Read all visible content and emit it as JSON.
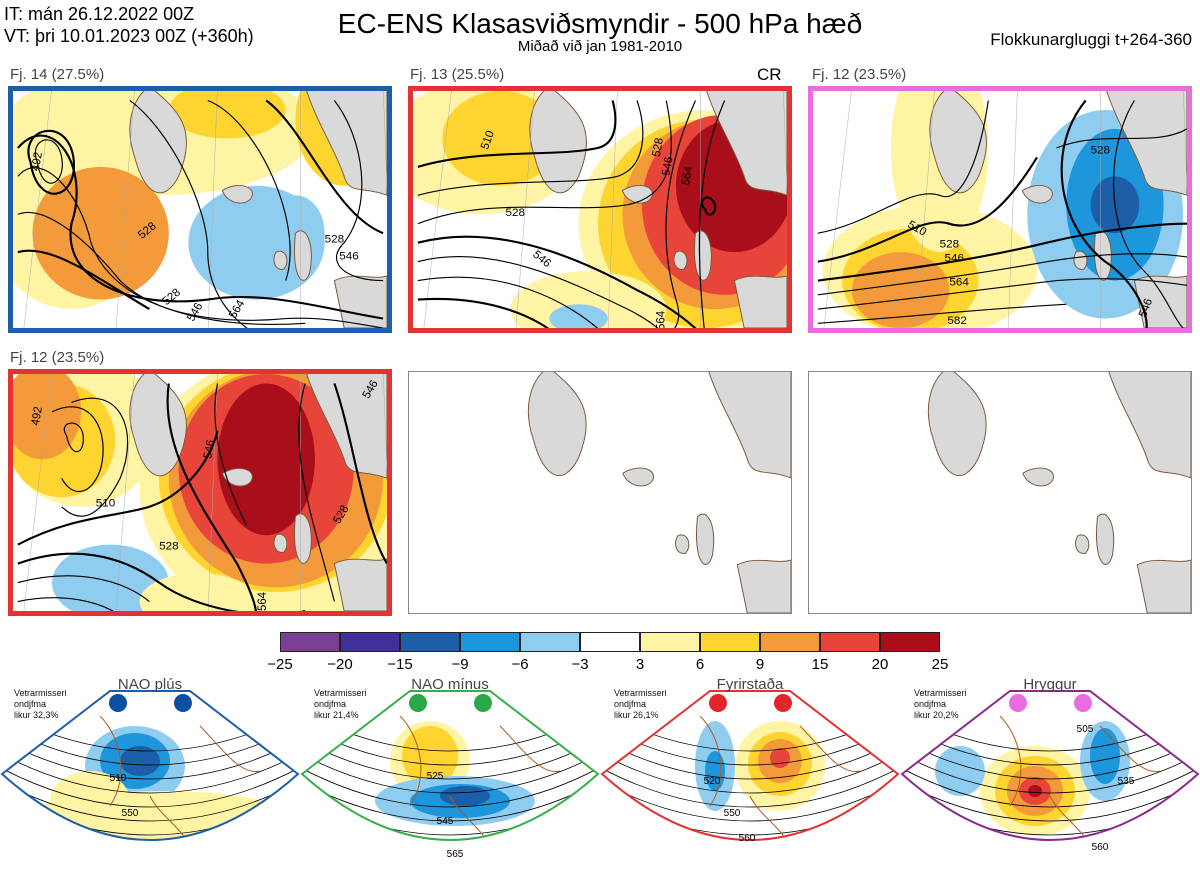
{
  "header": {
    "it": "IT: mán 26.12.2022 00Z",
    "vt": "VT: þri 10.01.2023 00Z  (+360h)",
    "title": "EC-ENS Klasasviðsmyndir - 500 hPa hæð",
    "subtitle": "Miðað við jan 1981-2010",
    "window": "Flokkunargluggi t+264-360"
  },
  "panels": [
    {
      "label": "Fj. 14 (27.5%)",
      "frame_color": "#1c5ea8",
      "contour_labels": [
        "492",
        "528",
        "528",
        "546",
        "528",
        "546",
        "564"
      ]
    },
    {
      "label": "Fj. 13 (25.5%)",
      "frame_color": "#e33232",
      "tag": "CR",
      "contour_labels": [
        "510",
        "528",
        "546",
        "528",
        "546",
        "564",
        "564"
      ]
    },
    {
      "label": "Fj. 12 (23.5%)",
      "frame_color": "#e86de0",
      "contour_labels": [
        "510",
        "528",
        "546",
        "564",
        "582",
        "528",
        "546"
      ]
    },
    {
      "label": "Fj. 12 (23.5%)",
      "frame_color": "#e33232",
      "contour_labels": [
        "492",
        "510",
        "528",
        "546",
        "528",
        "546",
        "564"
      ]
    }
  ],
  "colorbar": {
    "ticks": [
      "−25",
      "−20",
      "−15",
      "−9",
      "−6",
      "−3",
      "3",
      "6",
      "9",
      "15",
      "20",
      "25"
    ],
    "colors": [
      "#7b3f96",
      "#40309a",
      "#1c5ea8",
      "#1e96dc",
      "#8fcdf0",
      "#ffffff",
      "#fff4a3",
      "#fdd430",
      "#f39a3a",
      "#e8453a",
      "#a80f1a"
    ]
  },
  "regimes": [
    {
      "name": "NAO plús",
      "meta": [
        "Vetrarmisseri",
        "ondjfma",
        "likur 32,3%"
      ],
      "color": "#1c5ea8",
      "dot_color": "#0b4fa0",
      "labels": [
        "510",
        "550"
      ]
    },
    {
      "name": "NAO mínus",
      "meta": [
        "Vetrarmisseri",
        "ondjfma",
        "likur 21,4%"
      ],
      "color": "#35b04a",
      "dot_color": "#2aa848",
      "labels": [
        "525",
        "545",
        "565"
      ]
    },
    {
      "name": "Fyrirstaða",
      "meta": [
        "Vetrarmisseri",
        "ondjfma",
        "likur 26,1%"
      ],
      "color": "#e33232",
      "dot_color": "#e0262a",
      "labels": [
        "520",
        "550",
        "560"
      ]
    },
    {
      "name": "Hryggur",
      "meta": [
        "Vetrarmisseri",
        "ondjfma",
        "likur 20,2%"
      ],
      "color": "#8b2a8c",
      "dot_color": "#e86de0",
      "labels": [
        "505",
        "535",
        "560"
      ]
    }
  ],
  "chart_data": {
    "type": "heatmap",
    "title": "EC-ENS Klasasviðsmyndir - 500 hPa hæð",
    "subtitle": "Miðað við jan 1981-2010",
    "variable": "500 hPa geopotential height anomaly (dam)",
    "colorbar_levels": [
      -25,
      -20,
      -15,
      -9,
      -6,
      -3,
      3,
      6,
      9,
      15,
      20,
      25
    ],
    "clusters": [
      {
        "name": "Fj. 14",
        "probability_pct": 27.5,
        "regime": "NAO plús"
      },
      {
        "name": "Fj. 13",
        "probability_pct": 25.5,
        "regime": "Fyrirstaða"
      },
      {
        "name": "Fj. 12",
        "probability_pct": 23.5,
        "regime": "Hryggur"
      },
      {
        "name": "Fj. 12",
        "probability_pct": 23.5,
        "regime": "Fyrirstaða"
      }
    ],
    "regime_climatology": [
      {
        "regime": "NAO plús",
        "probability_pct": 32.3
      },
      {
        "regime": "NAO mínus",
        "probability_pct": 21.4
      },
      {
        "regime": "Fyrirstaða",
        "probability_pct": 26.1
      },
      {
        "regime": "Hryggur",
        "probability_pct": 20.2
      }
    ]
  }
}
